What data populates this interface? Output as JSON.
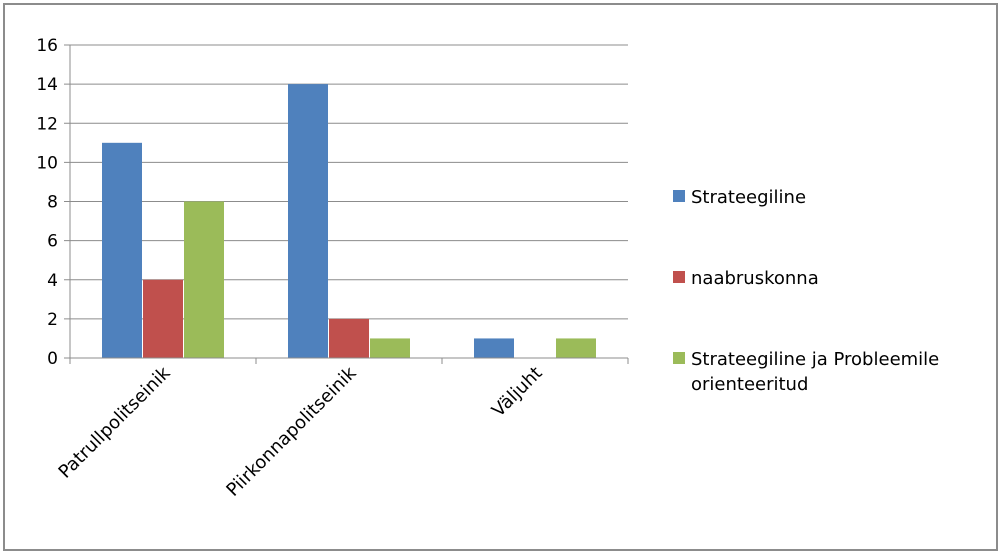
{
  "chart_data": {
    "type": "bar",
    "categories": [
      "Patrullpolitseinik",
      "Piirkonnapolitseinik",
      "Väljuht"
    ],
    "series": [
      {
        "name": "Strateegiline",
        "color": "#4f81bd",
        "values": [
          11,
          14,
          1
        ]
      },
      {
        "name": "naabruskonna",
        "color": "#c0504d",
        "values": [
          4,
          2,
          0
        ]
      },
      {
        "name": "Strateegiline ja Probleemile orienteeritud",
        "color": "#9bbb59",
        "values": [
          8,
          1,
          1
        ]
      }
    ],
    "legend_lines": [
      [
        "Strateegiline"
      ],
      [
        "naabruskonna"
      ],
      [
        "Strateegiline ja Probleemile",
        "orienteeritud"
      ]
    ],
    "ylim": [
      0,
      16
    ],
    "yticks": [
      0,
      2,
      4,
      6,
      8,
      10,
      12,
      14,
      16
    ],
    "grid": true,
    "legend_position": "right"
  }
}
